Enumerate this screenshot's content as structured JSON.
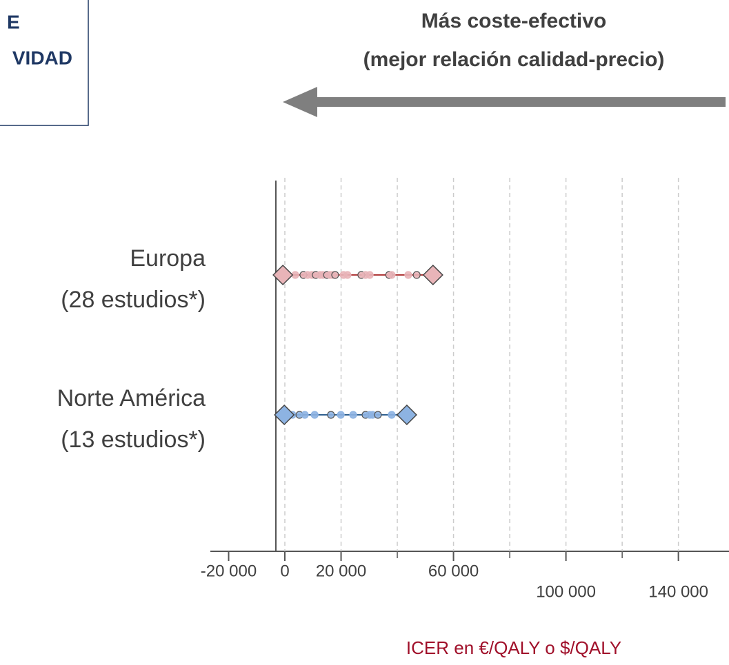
{
  "panel": {
    "lines": [
      "E",
      "VIDAD"
    ]
  },
  "chart_data": {
    "type": "range_dot",
    "title": [
      "Más coste-efectivo",
      "(mejor relación calidad-precio)"
    ],
    "xlabel": "ICER en €/QALY o $/QALY",
    "xlim": [
      -26500,
      158000
    ],
    "xticks": [
      {
        "value": -20000,
        "label": "-20 000"
      },
      0,
      {
        "value": 20000,
        "label": "20 000"
      },
      {
        "value": 60000,
        "label": "60 000"
      },
      {
        "value": 100000,
        "label": "100 000"
      },
      {
        "value": 140000,
        "label": "140 000"
      }
    ],
    "xgrid": [
      0,
      20000,
      40000,
      60000,
      80000,
      100000,
      120000,
      140000
    ],
    "grid": true,
    "series": [
      {
        "name": "Europa",
        "note": "(28 estudios*)",
        "color": "#b03a3a",
        "fill": "#e8b4b8",
        "min": -700,
        "max": 52700,
        "points": [
          3700,
          6600,
          8100,
          9600,
          11000,
          12500,
          13500,
          15000,
          16000,
          16900,
          17900,
          20900,
          22300,
          27200,
          28700,
          30200,
          37100,
          38000,
          43900,
          46900
        ]
      },
      {
        "name": "Norte América",
        "note": "(13 estudios*)",
        "color": "#2f5f8f",
        "fill": "#8db3e2",
        "min": -200,
        "max": 43400,
        "points": [
          2700,
          5200,
          7100,
          10600,
          16400,
          19900,
          24300,
          28700,
          30200,
          31200,
          33100,
          38000
        ]
      }
    ]
  }
}
